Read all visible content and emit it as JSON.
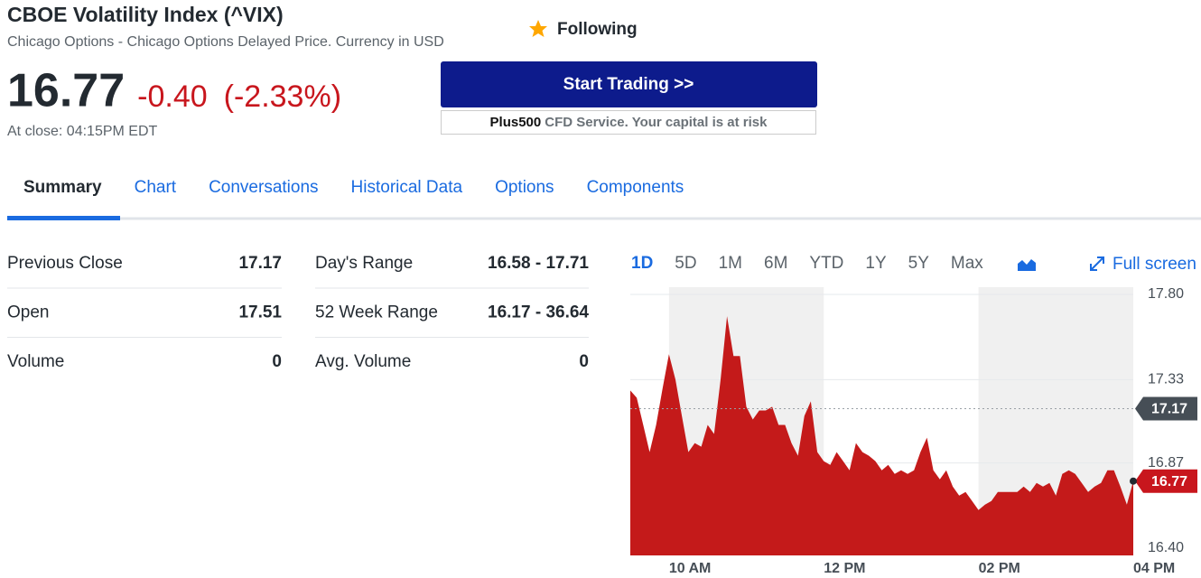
{
  "header": {
    "title": "CBOE Volatility Index (^VIX)",
    "subtitle": "Chicago Options - Chicago Options Delayed Price. Currency in USD",
    "follow": "Following"
  },
  "quote": {
    "price": "16.77",
    "change": "-0.40",
    "change_percent": "(-2.33%)",
    "close_time": "At close: 04:15PM EDT"
  },
  "ad": {
    "button": "Start Trading >>",
    "brand": "Plus500",
    "disclaimer": "CFD Service. Your capital is at risk"
  },
  "tabs": [
    "Summary",
    "Chart",
    "Conversations",
    "Historical Data",
    "Options",
    "Components"
  ],
  "stats": {
    "left": [
      [
        "Previous Close",
        "17.17"
      ],
      [
        "Open",
        "17.51"
      ],
      [
        "Volume",
        "0"
      ]
    ],
    "right": [
      [
        "Day's Range",
        "16.58 - 17.71"
      ],
      [
        "52 Week Range",
        "16.17 - 36.64"
      ],
      [
        "Avg. Volume",
        "0"
      ]
    ]
  },
  "chart_data": {
    "type": "area",
    "ranges": [
      "1D",
      "5D",
      "1M",
      "6M",
      "YTD",
      "1Y",
      "5Y",
      "Max"
    ],
    "full_screen": "Full screen",
    "color": "#c41a1a",
    "x": [
      "09:30",
      "09:35",
      "09:40",
      "09:45",
      "09:50",
      "09:55",
      "10:00",
      "10:05",
      "10:10",
      "10:15",
      "10:20",
      "10:25",
      "10:30",
      "10:35",
      "10:40",
      "10:45",
      "10:50",
      "10:55",
      "11:00",
      "11:05",
      "11:10",
      "11:15",
      "11:20",
      "11:25",
      "11:30",
      "11:35",
      "11:40",
      "11:45",
      "11:50",
      "11:55",
      "12:00",
      "12:05",
      "12:10",
      "12:15",
      "12:20",
      "12:25",
      "12:30",
      "12:35",
      "12:40",
      "12:45",
      "12:50",
      "12:55",
      "13:00",
      "13:05",
      "13:10",
      "13:15",
      "13:20",
      "13:25",
      "13:30",
      "13:35",
      "13:40",
      "13:45",
      "13:50",
      "13:55",
      "14:00",
      "14:05",
      "14:10",
      "14:15",
      "14:20",
      "14:25",
      "14:30",
      "14:35",
      "14:40",
      "14:45",
      "14:50",
      "14:55",
      "15:00",
      "15:05",
      "15:10",
      "15:15",
      "15:20",
      "15:25",
      "15:30",
      "15:35",
      "15:40",
      "15:45",
      "15:50",
      "15:55",
      "16:00"
    ],
    "values": [
      17.27,
      17.23,
      17.08,
      16.93,
      17.08,
      17.28,
      17.47,
      17.33,
      17.13,
      16.93,
      16.98,
      16.96,
      17.08,
      17.03,
      17.33,
      17.68,
      17.46,
      17.46,
      17.18,
      17.11,
      17.16,
      17.16,
      17.18,
      17.08,
      17.08,
      16.98,
      16.91,
      17.13,
      17.21,
      16.93,
      16.88,
      16.86,
      16.93,
      16.88,
      16.83,
      16.98,
      16.93,
      16.91,
      16.88,
      16.83,
      16.86,
      16.81,
      16.83,
      16.81,
      16.83,
      16.93,
      17.01,
      16.83,
      16.78,
      16.83,
      16.74,
      16.69,
      16.71,
      16.66,
      16.61,
      16.64,
      16.66,
      16.71,
      16.71,
      16.71,
      16.71,
      16.74,
      16.71,
      16.76,
      16.74,
      16.76,
      16.69,
      16.81,
      16.83,
      16.81,
      16.76,
      16.71,
      16.74,
      16.76,
      16.83,
      16.83,
      16.74,
      16.64,
      16.77
    ],
    "xlim": [
      "09:30",
      "16:00"
    ],
    "xticks": [
      {
        "value": "10:00",
        "label": "10 AM"
      },
      {
        "value": "12:00",
        "label": "12 PM"
      },
      {
        "value": "14:00",
        "label": "02 PM"
      },
      {
        "value": "16:00",
        "label": "04 PM"
      }
    ],
    "ylim": [
      16.36,
      17.84
    ],
    "yticks": [
      {
        "value": 17.8,
        "label": "17.80"
      },
      17.33,
      16.87,
      {
        "value": 16.4,
        "label": "16.40"
      }
    ],
    "previous_close": 17.17,
    "last": 16.77
  }
}
